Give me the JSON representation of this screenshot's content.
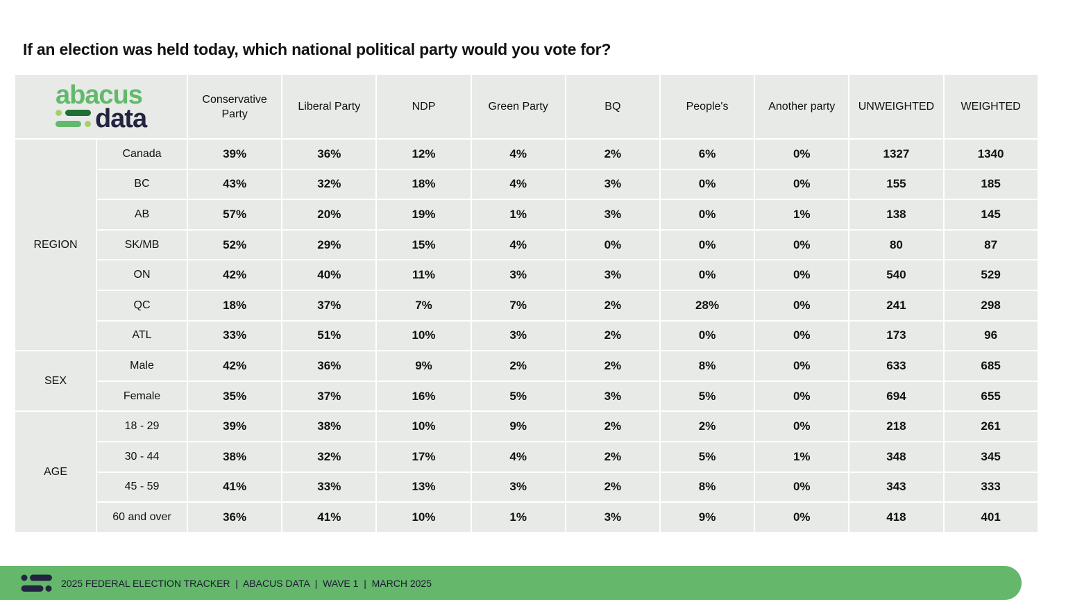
{
  "title": "If an election was held today, which national political party would you vote for?",
  "logo": {
    "line1": "abacus",
    "line2": "data",
    "colors": {
      "green": "#62b96b",
      "dark_green": "#1f6e35",
      "navy": "#23243f"
    }
  },
  "columns": [
    "Conservative Party",
    "Liberal Party",
    "NDP",
    "Green Party",
    "BQ",
    "People's",
    "Another party",
    "UNWEIGHTED",
    "WEIGHTED"
  ],
  "groups": [
    {
      "label": "REGION",
      "rows": [
        {
          "label": "Canada",
          "values": [
            "39%",
            "36%",
            "12%",
            "4%",
            "2%",
            "6%",
            "0%",
            "1327",
            "1340"
          ]
        },
        {
          "label": "BC",
          "values": [
            "43%",
            "32%",
            "18%",
            "4%",
            "3%",
            "0%",
            "0%",
            "155",
            "185"
          ]
        },
        {
          "label": "AB",
          "values": [
            "57%",
            "20%",
            "19%",
            "1%",
            "3%",
            "0%",
            "1%",
            "138",
            "145"
          ]
        },
        {
          "label": "SK/MB",
          "values": [
            "52%",
            "29%",
            "15%",
            "4%",
            "0%",
            "0%",
            "0%",
            "80",
            "87"
          ]
        },
        {
          "label": "ON",
          "values": [
            "42%",
            "40%",
            "11%",
            "3%",
            "3%",
            "0%",
            "0%",
            "540",
            "529"
          ]
        },
        {
          "label": "QC",
          "values": [
            "18%",
            "37%",
            "7%",
            "7%",
            "2%",
            "28%",
            "0%",
            "241",
            "298"
          ]
        },
        {
          "label": "ATL",
          "values": [
            "33%",
            "51%",
            "10%",
            "3%",
            "2%",
            "0%",
            "0%",
            "173",
            "96"
          ]
        }
      ]
    },
    {
      "label": "SEX",
      "rows": [
        {
          "label": "Male",
          "values": [
            "42%",
            "36%",
            "9%",
            "2%",
            "2%",
            "8%",
            "0%",
            "633",
            "685"
          ]
        },
        {
          "label": "Female",
          "values": [
            "35%",
            "37%",
            "16%",
            "5%",
            "3%",
            "5%",
            "0%",
            "694",
            "655"
          ]
        }
      ]
    },
    {
      "label": "AGE",
      "rows": [
        {
          "label": "18 - 29",
          "values": [
            "39%",
            "38%",
            "10%",
            "9%",
            "2%",
            "2%",
            "0%",
            "218",
            "261"
          ]
        },
        {
          "label": "30 - 44",
          "values": [
            "38%",
            "32%",
            "17%",
            "4%",
            "2%",
            "5%",
            "1%",
            "348",
            "345"
          ]
        },
        {
          "label": "45 - 59",
          "values": [
            "41%",
            "33%",
            "13%",
            "3%",
            "2%",
            "8%",
            "0%",
            "343",
            "333"
          ]
        },
        {
          "label": "60 and over",
          "values": [
            "36%",
            "41%",
            "10%",
            "1%",
            "3%",
            "9%",
            "0%",
            "418",
            "401"
          ]
        }
      ]
    }
  ],
  "footer": {
    "text": "2025 FEDERAL ELECTION TRACKER  |  ABACUS DATA  |  WAVE 1  |  MARCH 2025",
    "color": "#64b76b"
  }
}
